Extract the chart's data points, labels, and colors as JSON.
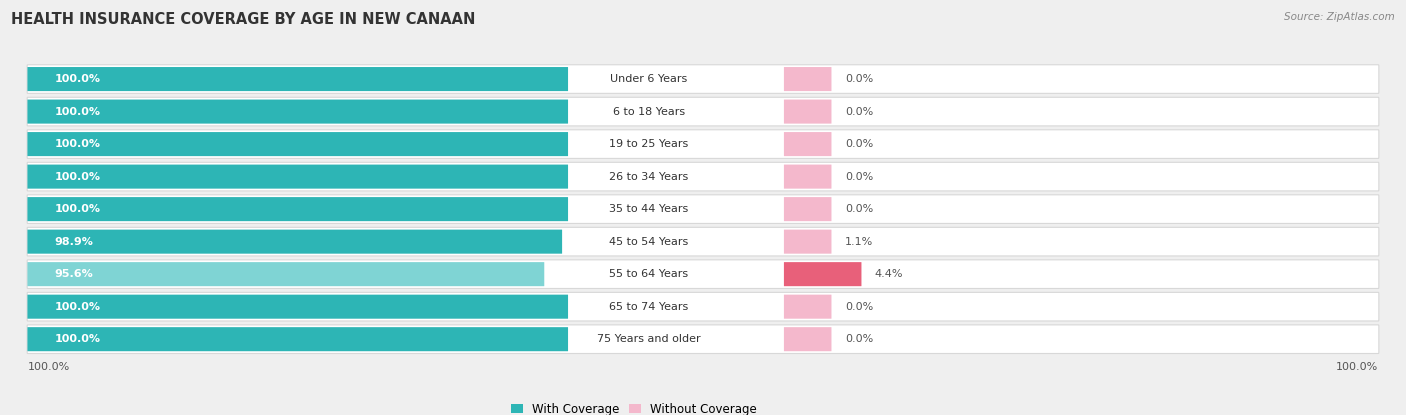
{
  "title": "HEALTH INSURANCE COVERAGE BY AGE IN NEW CANAAN",
  "source": "Source: ZipAtlas.com",
  "categories": [
    "Under 6 Years",
    "6 to 18 Years",
    "19 to 25 Years",
    "26 to 34 Years",
    "35 to 44 Years",
    "45 to 54 Years",
    "55 to 64 Years",
    "65 to 74 Years",
    "75 Years and older"
  ],
  "with_coverage": [
    100.0,
    100.0,
    100.0,
    100.0,
    100.0,
    98.9,
    95.6,
    100.0,
    100.0
  ],
  "without_coverage": [
    0.0,
    0.0,
    0.0,
    0.0,
    0.0,
    1.1,
    4.4,
    0.0,
    0.0
  ],
  "color_with": "#2db5b5",
  "color_with_light": "#7fd4d4",
  "color_without_light": "#f4b8cc",
  "color_without_dark": "#e8607a",
  "bg_color": "#efefef",
  "bar_bg_color": "#ffffff",
  "row_border_color": "#d8d8d8",
  "title_fontsize": 10.5,
  "label_fontsize": 8.0,
  "pct_fontsize": 8.0,
  "tick_fontsize": 8.0,
  "legend_fontsize": 8.5,
  "source_fontsize": 7.5
}
